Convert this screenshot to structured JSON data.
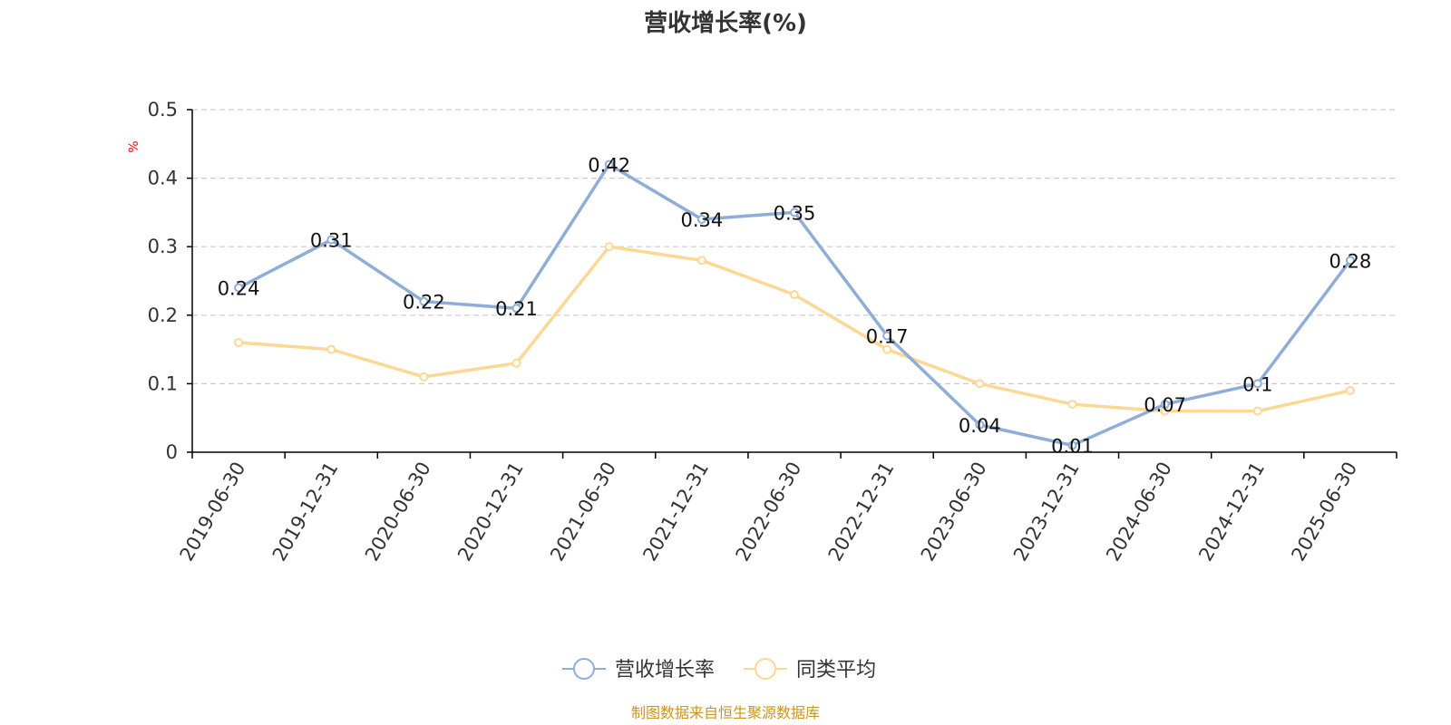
{
  "chart_data": {
    "type": "line",
    "title": "营收增长率(%)",
    "ylabel": "%",
    "categories": [
      "2019-06-30",
      "2019-12-31",
      "2020-06-30",
      "2020-12-31",
      "2021-06-30",
      "2021-12-31",
      "2022-06-30",
      "2022-12-31",
      "2023-06-30",
      "2023-12-31",
      "2024-06-30",
      "2024-12-31",
      "2025-06-30"
    ],
    "ylim": [
      0,
      0.5
    ],
    "yticks": [
      "0",
      "0.1",
      "0.2",
      "0.3",
      "0.4",
      "0.5"
    ],
    "grid": true,
    "legend_position": "bottom-center",
    "series": [
      {
        "name": "营收增长率",
        "color": "#8eaed8",
        "values": [
          0.24,
          0.31,
          0.22,
          0.21,
          0.42,
          0.34,
          0.35,
          0.17,
          0.04,
          0.01,
          0.07,
          0.1,
          0.28
        ],
        "labels": [
          "0.24",
          "0.31",
          "0.22",
          "0.21",
          "0.42",
          "0.34",
          "0.35",
          "0.17",
          "0.04",
          "0.01",
          "0.07",
          "0.1",
          "0.28"
        ]
      },
      {
        "name": "同类平均",
        "color": "#fcd894",
        "values": [
          0.16,
          0.15,
          0.11,
          0.13,
          0.3,
          0.28,
          0.23,
          0.15,
          0.1,
          0.07,
          0.06,
          0.06,
          0.09
        ]
      }
    ]
  },
  "source_note": "制图数据来自恒生聚源数据库",
  "colors": {
    "axis": "#000000",
    "grid": "#cccccc",
    "unit_label": "#ff0000",
    "source": "#c8961e"
  }
}
